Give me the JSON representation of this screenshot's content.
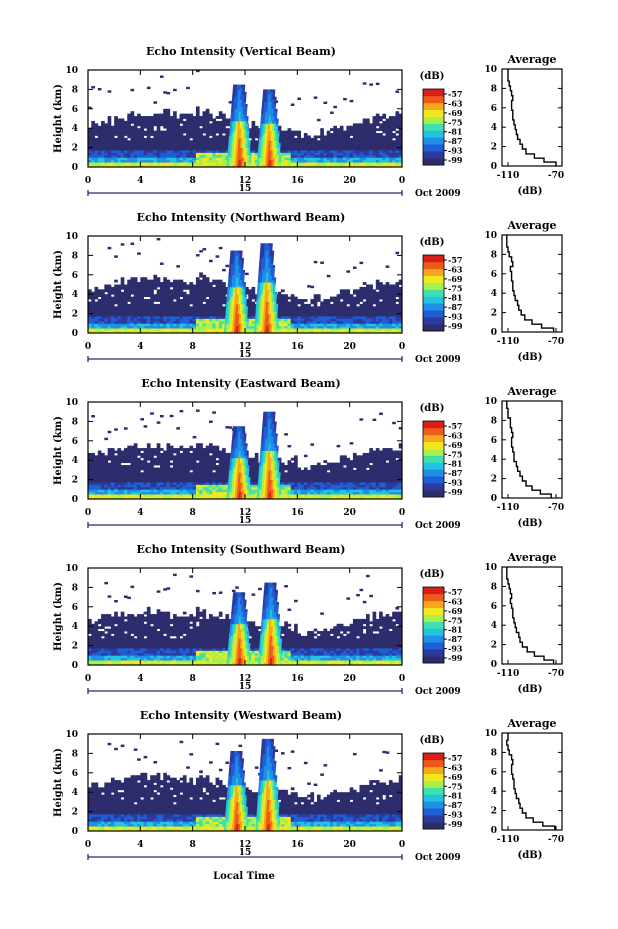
{
  "x_axis_label": "Local Time",
  "colorbar_unit": "(dB)",
  "colorbar_ticks": [
    "-57",
    "-63",
    "-69",
    "-75",
    "-81",
    "-87",
    "-93",
    "-99"
  ],
  "colorbar_colors": [
    "#2d2d6e",
    "#2b3a9c",
    "#1f5fd6",
    "#1f8fe8",
    "#22c4e0",
    "#3ee0b0",
    "#a8f04a",
    "#f2e81e",
    "#f6a81a",
    "#ee5a18",
    "#d81e16"
  ],
  "average_title": "Average",
  "average_xlabel": "(dB)",
  "date_label": "Oct 2009",
  "day_label": "15",
  "chart_data": [
    {
      "type": "heatmap",
      "title": "Echo Intensity (Vertical Beam)",
      "ylabel": "Height (km)",
      "x_ticks": [
        "0",
        "4",
        "8",
        "12",
        "16",
        "20",
        "0"
      ],
      "y_ticks": [
        "0",
        "2",
        "4",
        "6",
        "8",
        "10"
      ],
      "xlim": [
        0,
        24
      ],
      "ylim": [
        0,
        10
      ],
      "color_range_db": [
        -99,
        -57
      ],
      "convective_cells": [
        {
          "time_h": 11.5,
          "top_km": 8.5
        },
        {
          "time_h": 13.8,
          "top_km": 8.0
        }
      ],
      "profile": {
        "type": "line",
        "title": "Average",
        "x_ticks": [
          "-110",
          "-70"
        ],
        "xlim": [
          -115,
          -65
        ],
        "y_ticks": [
          "0",
          "2",
          "4",
          "6",
          "8",
          "10"
        ],
        "ylim": [
          0,
          10
        ],
        "height_km": [
          0.2,
          0.6,
          1.0,
          1.5,
          2.0,
          2.5,
          3.0,
          3.5,
          4.0,
          4.5,
          5.0,
          5.5,
          6.0,
          6.5,
          7.0,
          7.5,
          8.0,
          8.5,
          9.0,
          9.5
        ],
        "echo_db": [
          -70,
          -80,
          -88,
          -95,
          -98,
          -100,
          -102,
          -103,
          -104,
          -105,
          -106,
          -106,
          -107,
          -107,
          -106,
          -107,
          -108,
          -109,
          -110,
          -110
        ]
      }
    },
    {
      "type": "heatmap",
      "title": "Echo Intensity (Northward Beam)",
      "ylabel": "Height (km)",
      "x_ticks": [
        "0",
        "4",
        "8",
        "12",
        "16",
        "20",
        "0"
      ],
      "y_ticks": [
        "0",
        "2",
        "4",
        "6",
        "8",
        "10"
      ],
      "xlim": [
        0,
        24
      ],
      "ylim": [
        0,
        10
      ],
      "color_range_db": [
        -99,
        -57
      ],
      "convective_cells": [
        {
          "time_h": 11.3,
          "top_km": 8.5
        },
        {
          "time_h": 13.6,
          "top_km": 9.2
        }
      ],
      "profile": {
        "type": "line",
        "title": "Average",
        "x_ticks": [
          "-110",
          "-70"
        ],
        "xlim": [
          -115,
          -65
        ],
        "y_ticks": [
          "0",
          "2",
          "4",
          "6",
          "8",
          "10"
        ],
        "ylim": [
          0,
          10
        ],
        "height_km": [
          0.2,
          0.6,
          1.0,
          1.5,
          2.0,
          2.5,
          3.0,
          3.5,
          4.0,
          4.5,
          5.0,
          5.5,
          6.0,
          6.5,
          7.0,
          7.5,
          8.0,
          8.5,
          9.0,
          9.5
        ],
        "echo_db": [
          -72,
          -82,
          -90,
          -96,
          -99,
          -101,
          -102,
          -104,
          -105,
          -106,
          -106,
          -107,
          -107,
          -108,
          -106,
          -107,
          -109,
          -110,
          -111,
          -111
        ]
      }
    },
    {
      "type": "heatmap",
      "title": "Echo Intensity (Eastward Beam)",
      "ylabel": "Height (km)",
      "x_ticks": [
        "0",
        "4",
        "8",
        "12",
        "16",
        "20",
        "0"
      ],
      "y_ticks": [
        "0",
        "2",
        "4",
        "6",
        "8",
        "10"
      ],
      "xlim": [
        0,
        24
      ],
      "ylim": [
        0,
        10
      ],
      "color_range_db": [
        -99,
        -57
      ],
      "convective_cells": [
        {
          "time_h": 11.5,
          "top_km": 7.5
        },
        {
          "time_h": 13.8,
          "top_km": 8.8
        }
      ],
      "profile": {
        "type": "line",
        "title": "Average",
        "x_ticks": [
          "-110",
          "-70"
        ],
        "xlim": [
          -115,
          -65
        ],
        "y_ticks": [
          "0",
          "2",
          "4",
          "6",
          "8",
          "10"
        ],
        "ylim": [
          0,
          10
        ],
        "height_km": [
          0.2,
          0.6,
          1.0,
          1.5,
          2.0,
          2.5,
          3.0,
          3.5,
          4.0,
          4.5,
          5.0,
          5.5,
          6.0,
          6.5,
          7.0,
          7.5,
          8.0,
          8.5,
          9.0,
          9.5
        ],
        "echo_db": [
          -74,
          -83,
          -90,
          -95,
          -98,
          -100,
          -102,
          -103,
          -105,
          -105,
          -106,
          -107,
          -107,
          -106,
          -107,
          -108,
          -108,
          -110,
          -110,
          -111
        ]
      }
    },
    {
      "type": "heatmap",
      "title": "Echo Intensity (Southward Beam)",
      "ylabel": "Height (km)",
      "x_ticks": [
        "0",
        "4",
        "8",
        "12",
        "16",
        "20",
        "0"
      ],
      "y_ticks": [
        "0",
        "2",
        "4",
        "6",
        "8",
        "10"
      ],
      "xlim": [
        0,
        24
      ],
      "ylim": [
        0,
        10
      ],
      "color_range_db": [
        -99,
        -57
      ],
      "convective_cells": [
        {
          "time_h": 11.5,
          "top_km": 7.5
        },
        {
          "time_h": 13.9,
          "top_km": 8.5
        }
      ],
      "profile": {
        "type": "line",
        "title": "Average",
        "x_ticks": [
          "-110",
          "-70"
        ],
        "xlim": [
          -115,
          -65
        ],
        "y_ticks": [
          "0",
          "2",
          "4",
          "6",
          "8",
          "10"
        ],
        "ylim": [
          0,
          10
        ],
        "height_km": [
          0.2,
          0.6,
          1.0,
          1.5,
          2.0,
          2.5,
          3.0,
          3.5,
          4.0,
          4.5,
          5.0,
          5.5,
          6.0,
          6.5,
          7.0,
          7.5,
          8.0,
          8.5,
          9.0,
          9.5
        ],
        "echo_db": [
          -72,
          -80,
          -88,
          -94,
          -98,
          -100,
          -101,
          -103,
          -104,
          -105,
          -106,
          -106,
          -107,
          -108,
          -107,
          -108,
          -109,
          -110,
          -111,
          -111
        ]
      }
    },
    {
      "type": "heatmap",
      "title": "Echo Intensity (Westward Beam)",
      "ylabel": "Height (km)",
      "x_ticks": [
        "0",
        "4",
        "8",
        "12",
        "16",
        "20",
        "0"
      ],
      "y_ticks": [
        "0",
        "2",
        "4",
        "6",
        "8",
        "10"
      ],
      "xlim": [
        0,
        24
      ],
      "ylim": [
        0,
        10
      ],
      "color_range_db": [
        -99,
        -57
      ],
      "convective_cells": [
        {
          "time_h": 11.3,
          "top_km": 8.2
        },
        {
          "time_h": 13.7,
          "top_km": 9.5
        }
      ],
      "profile": {
        "type": "line",
        "title": "Average",
        "x_ticks": [
          "-110",
          "-70"
        ],
        "xlim": [
          -115,
          -65
        ],
        "y_ticks": [
          "0",
          "2",
          "4",
          "6",
          "8",
          "10"
        ],
        "ylim": [
          0,
          10
        ],
        "height_km": [
          0.2,
          0.6,
          1.0,
          1.5,
          2.0,
          2.5,
          3.0,
          3.5,
          4.0,
          4.5,
          5.0,
          5.5,
          6.0,
          6.5,
          7.0,
          7.5,
          8.0,
          8.5,
          9.0,
          9.5
        ],
        "echo_db": [
          -71,
          -81,
          -89,
          -95,
          -98,
          -100,
          -101,
          -103,
          -104,
          -105,
          -105,
          -106,
          -107,
          -107,
          -106,
          -107,
          -109,
          -110,
          -111,
          -110
        ]
      }
    }
  ]
}
